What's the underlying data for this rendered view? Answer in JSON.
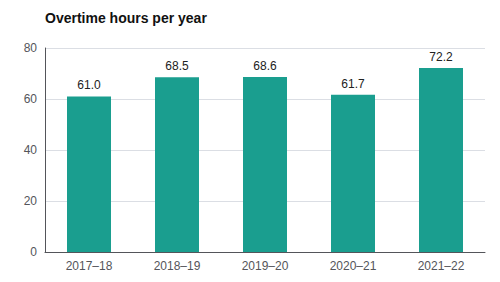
{
  "chart_data": {
    "type": "bar",
    "title": "Overtime hours per year",
    "categories": [
      "2017–18",
      "2018–19",
      "2019–20",
      "2020–21",
      "2021–22"
    ],
    "values": [
      61.0,
      68.5,
      68.6,
      61.7,
      72.2
    ],
    "value_labels": [
      "61.0",
      "68.5",
      "68.6",
      "61.7",
      "72.2"
    ],
    "data_labels": true,
    "color": "#1a9e8f",
    "ylim": [
      0,
      80
    ],
    "yticks": [
      0,
      20,
      40,
      60,
      80
    ],
    "grid": true
  }
}
